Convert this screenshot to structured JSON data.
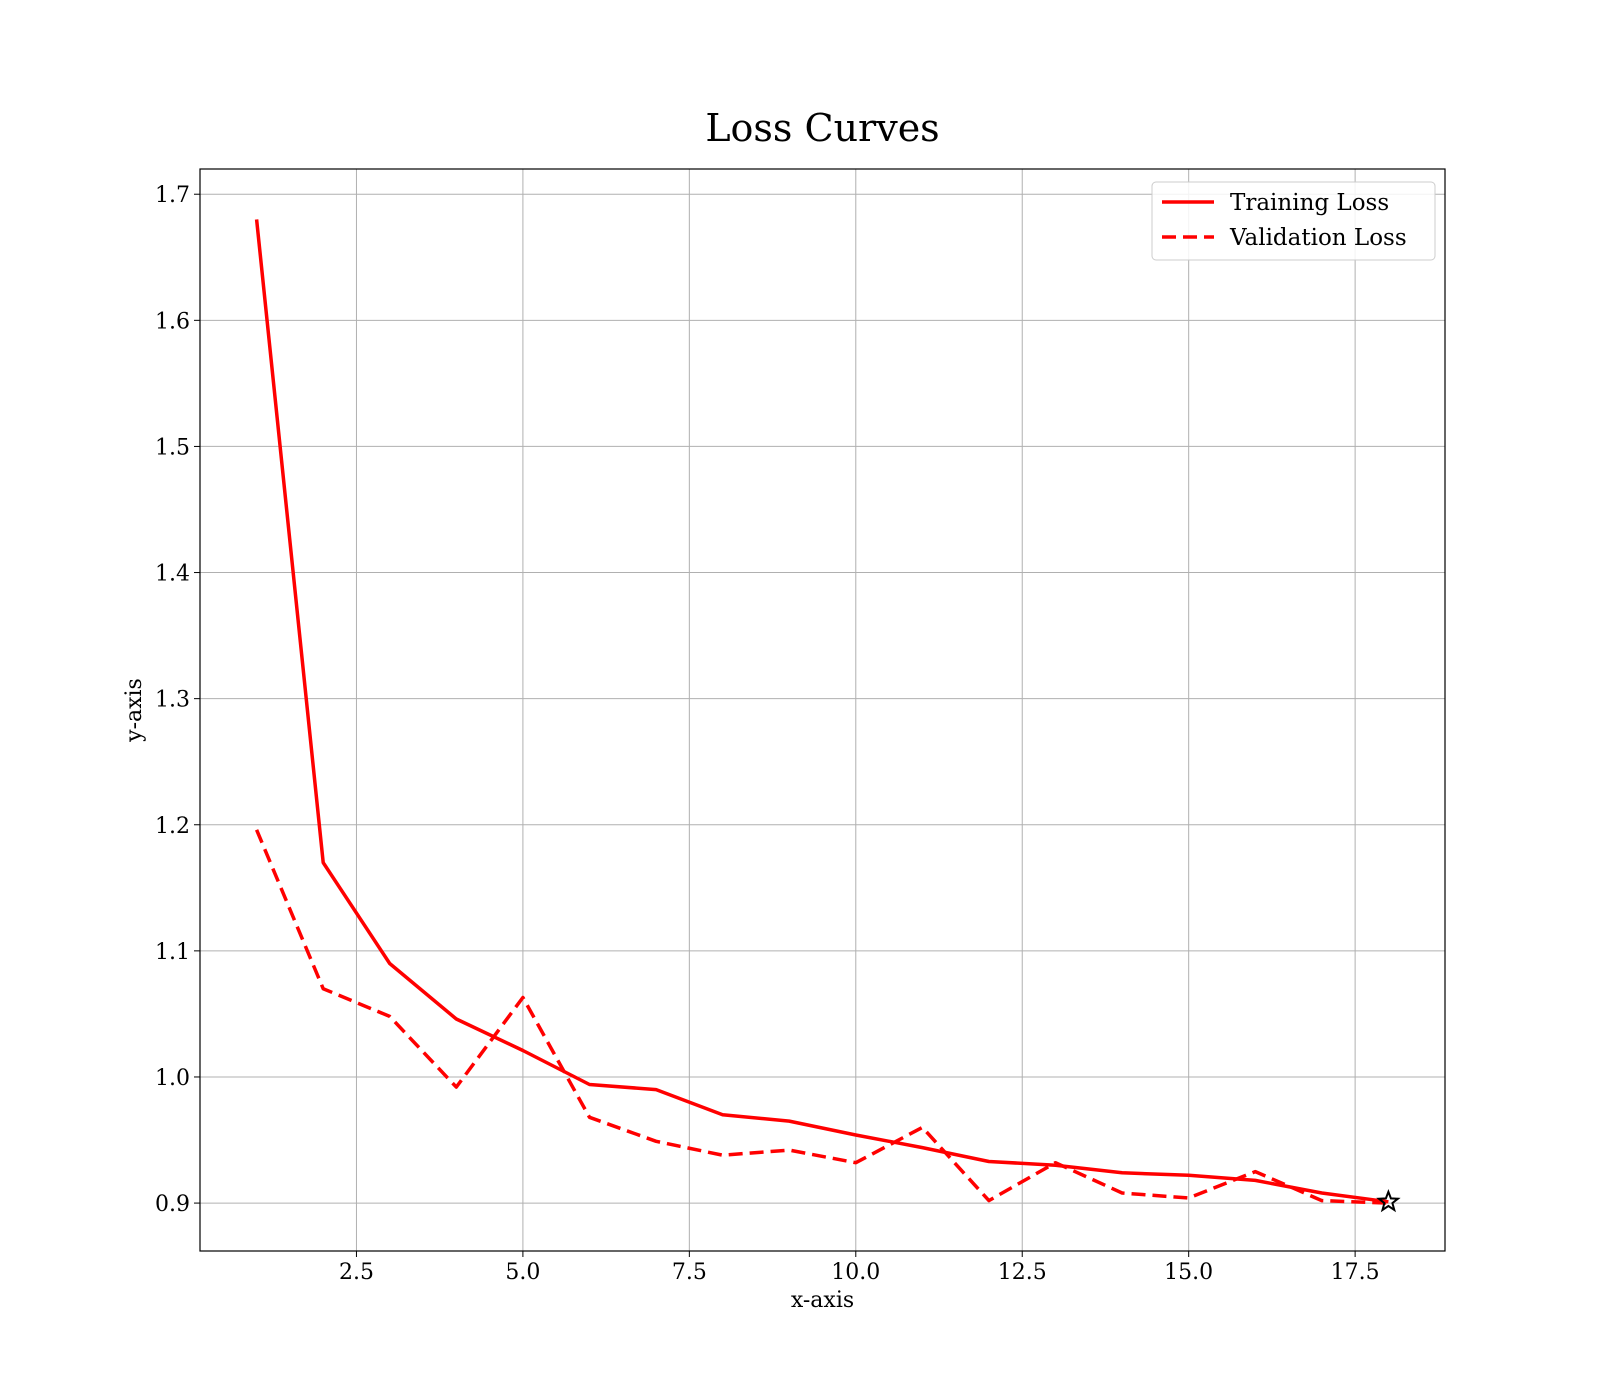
{
  "chart_data": {
    "type": "line",
    "title": "Loss Curves",
    "xlabel": "x-axis",
    "ylabel": "y-axis",
    "xlim": [
      0.15,
      18.85
    ],
    "ylim": [
      0.862,
      1.72
    ],
    "xticks": [
      2.5,
      5.0,
      7.5,
      10.0,
      12.5,
      15.0,
      17.5
    ],
    "xtick_labels": [
      "2.5",
      "5.0",
      "7.5",
      "10.0",
      "12.5",
      "15.0",
      "17.5"
    ],
    "yticks": [
      0.9,
      1.0,
      1.1,
      1.2,
      1.3,
      1.4,
      1.5,
      1.6,
      1.7
    ],
    "ytick_labels": [
      "0.9",
      "1.0",
      "1.1",
      "1.2",
      "1.3",
      "1.4",
      "1.5",
      "1.6",
      "1.7"
    ],
    "grid": true,
    "legend_position": "top-right",
    "x": [
      1,
      2,
      3,
      4,
      5,
      6,
      7,
      8,
      9,
      10,
      11,
      12,
      13,
      14,
      15,
      16,
      17,
      18
    ],
    "series": [
      {
        "name": "Training Loss",
        "color": "#ff0000",
        "style": "solid",
        "values": [
          1.68,
          1.17,
          1.09,
          1.046,
          1.021,
          0.994,
          0.99,
          0.97,
          0.965,
          0.954,
          0.944,
          0.933,
          0.93,
          0.924,
          0.922,
          0.918,
          0.908,
          0.901
        ]
      },
      {
        "name": "Validation Loss",
        "color": "#ff0000",
        "style": "dashed",
        "values": [
          1.196,
          1.07,
          1.048,
          0.992,
          1.063,
          0.968,
          0.949,
          0.938,
          0.942,
          0.932,
          0.96,
          0.902,
          0.932,
          0.908,
          0.904,
          0.925,
          0.902,
          0.9
        ]
      }
    ],
    "annotations": [
      {
        "marker": "star",
        "x": 18,
        "y": 0.901,
        "color": "#000000"
      }
    ]
  }
}
